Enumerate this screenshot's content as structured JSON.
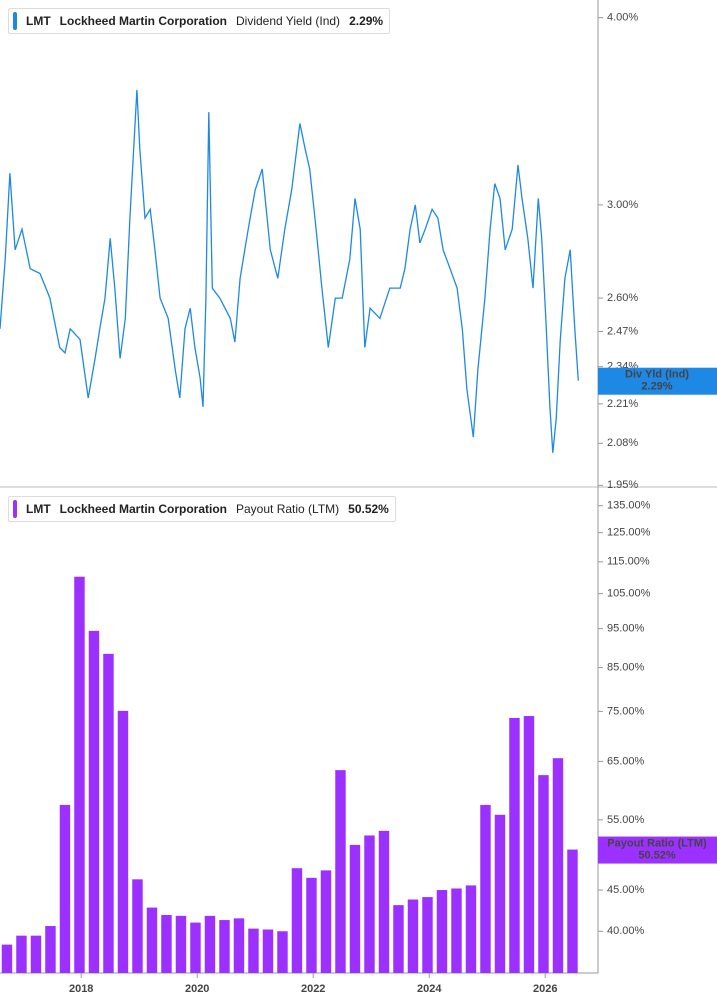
{
  "chart_data": [
    {
      "type": "line",
      "ticker": "LMT",
      "company": "Lockheed Martin Corporation",
      "metric": "Dividend Yield (Ind)",
      "last_value_label": "2.29%",
      "log_scale": true,
      "xlim": [
        2016.6,
        2026.91
      ],
      "ylim": [
        1.945,
        4.11
      ],
      "yticks": [
        {
          "value": 1.95,
          "label": "1.95%"
        },
        {
          "value": 2.08,
          "label": "2.08%"
        },
        {
          "value": 2.21,
          "label": "2.21%"
        },
        {
          "value": 2.34,
          "label": "2.34%"
        },
        {
          "value": 2.47,
          "label": "2.47%"
        },
        {
          "value": 2.6,
          "label": "2.60%"
        },
        {
          "value": 3,
          "label": "3.00%"
        },
        {
          "value": 4,
          "label": "4.00%"
        }
      ],
      "x": [
        2016.6,
        2016.69,
        2016.77,
        2016.86,
        2016.98,
        2017.12,
        2017.29,
        2017.46,
        2017.63,
        2017.72,
        2017.81,
        2017.98,
        2018.12,
        2018.24,
        2018.32,
        2018.41,
        2018.5,
        2018.58,
        2018.67,
        2018.76,
        2018.84,
        2018.96,
        2019.01,
        2019.1,
        2019.19,
        2019.27,
        2019.36,
        2019.5,
        2019.62,
        2019.7,
        2019.79,
        2019.88,
        2019.96,
        2020.05,
        2020.1,
        2020.15,
        2020.2,
        2020.26,
        2020.39,
        2020.57,
        2020.65,
        2020.74,
        2020.88,
        2021.0,
        2021.12,
        2021.26,
        2021.39,
        2021.51,
        2021.63,
        2021.77,
        2021.86,
        2021.94,
        2022.05,
        2022.15,
        2022.26,
        2022.38,
        2022.5,
        2022.63,
        2022.72,
        2022.81,
        2022.89,
        2022.98,
        2023.15,
        2023.32,
        2023.5,
        2023.58,
        2023.67,
        2023.76,
        2023.84,
        2023.93,
        2024.05,
        2024.15,
        2024.24,
        2024.36,
        2024.48,
        2024.57,
        2024.65,
        2024.76,
        2024.84,
        2024.96,
        2025.05,
        2025.13,
        2025.22,
        2025.31,
        2025.43,
        2025.53,
        2025.6,
        2025.7,
        2025.79,
        2025.88,
        2025.94,
        2026.01,
        2026.08,
        2026.13,
        2026.19,
        2026.26,
        2026.34,
        2026.43,
        2026.51,
        2026.57
      ],
      "series": [
        {
          "name": "Div Yld (Ind)",
          "color": "#1e88e5",
          "values": [
            2.48,
            2.76,
            3.15,
            2.8,
            2.89,
            2.72,
            2.7,
            2.6,
            2.41,
            2.39,
            2.48,
            2.44,
            2.23,
            2.37,
            2.48,
            2.6,
            2.85,
            2.64,
            2.37,
            2.52,
            2.94,
            3.58,
            3.27,
            2.94,
            2.98,
            2.8,
            2.6,
            2.52,
            2.33,
            2.23,
            2.48,
            2.56,
            2.41,
            2.3,
            2.2,
            2.6,
            3.46,
            2.64,
            2.6,
            2.52,
            2.43,
            2.68,
            2.89,
            3.07,
            3.17,
            2.8,
            2.68,
            2.89,
            3.07,
            3.4,
            3.27,
            3.17,
            2.89,
            2.64,
            2.41,
            2.6,
            2.6,
            2.76,
            3.03,
            2.89,
            2.41,
            2.56,
            2.52,
            2.64,
            2.64,
            2.72,
            2.89,
            3.0,
            2.83,
            2.89,
            2.98,
            2.94,
            2.8,
            2.72,
            2.64,
            2.48,
            2.26,
            2.1,
            2.33,
            2.6,
            2.89,
            3.1,
            3.03,
            2.8,
            2.89,
            3.19,
            3.03,
            2.85,
            2.64,
            3.03,
            2.85,
            2.52,
            2.2,
            2.05,
            2.16,
            2.44,
            2.68,
            2.8,
            2.48,
            2.29
          ]
        }
      ]
    },
    {
      "type": "bar",
      "ticker": "LMT",
      "company": "Lockheed Martin Corporation",
      "metric": "Payout Ratio (LTM)",
      "last_value_label": "50.52%",
      "log_scale": true,
      "xlim": [
        2016.6,
        2026.91
      ],
      "xticks": [
        2018,
        2020,
        2022,
        2024,
        2026
      ],
      "ylim": [
        35.5,
        140
      ],
      "yticks": [
        {
          "value": 40,
          "label": "40.00%"
        },
        {
          "value": 45,
          "label": "45.00%"
        },
        {
          "value": 55,
          "label": "55.00%"
        },
        {
          "value": 65,
          "label": "65.00%"
        },
        {
          "value": 75,
          "label": "75.00%"
        },
        {
          "value": 85,
          "label": "85.00%"
        },
        {
          "value": 95,
          "label": "95.00%"
        },
        {
          "value": 105,
          "label": "105.00%"
        },
        {
          "value": 115,
          "label": "115.00%"
        },
        {
          "value": 125,
          "label": "125.00%"
        },
        {
          "value": 135,
          "label": "135.00%"
        }
      ],
      "x": [
        2016.72,
        2016.97,
        2017.22,
        2017.47,
        2017.72,
        2017.97,
        2018.22,
        2018.47,
        2018.72,
        2018.97,
        2019.22,
        2019.47,
        2019.72,
        2019.97,
        2020.22,
        2020.47,
        2020.72,
        2020.97,
        2021.22,
        2021.47,
        2021.72,
        2021.97,
        2022.22,
        2022.47,
        2022.72,
        2022.97,
        2023.22,
        2023.47,
        2023.72,
        2023.97,
        2024.22,
        2024.47,
        2024.72,
        2024.97,
        2025.22,
        2025.47,
        2025.72,
        2025.97,
        2026.22,
        2026.47
      ],
      "series": [
        {
          "name": "Payout Ratio (LTM)",
          "color": "#9b30ff",
          "values": [
            38.5,
            39.5,
            39.5,
            40.6,
            57.4,
            110.2,
            94.4,
            88.4,
            75.1,
            46.4,
            42.8,
            41.9,
            41.8,
            41.0,
            41.8,
            41.3,
            41.5,
            40.3,
            40.2,
            40.0,
            47.9,
            46.6,
            47.6,
            63.4,
            51.2,
            52.6,
            53.3,
            43.1,
            43.8,
            44.1,
            45.0,
            45.2,
            45.6,
            57.4,
            55.8,
            73.6,
            74.0,
            62.5,
            65.6,
            50.52
          ]
        }
      ]
    }
  ]
}
